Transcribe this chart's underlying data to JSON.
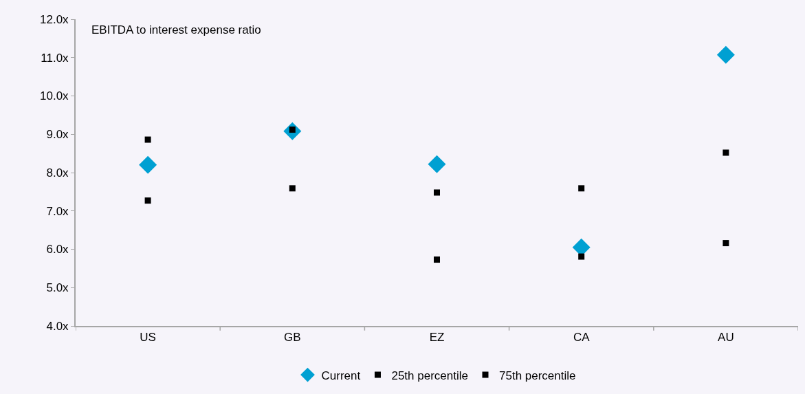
{
  "chart_data": {
    "type": "scatter",
    "title": "EBITDA to interest expense ratio",
    "categories": [
      "US",
      "GB",
      "EZ",
      "CA",
      "AU"
    ],
    "series": [
      {
        "name": "Current",
        "color": "#00a0d2",
        "marker": "diamond",
        "values": [
          8.2,
          9.08,
          8.22,
          6.05,
          11.07
        ]
      },
      {
        "name": "25th percentile",
        "color": "#000000",
        "marker": "square",
        "values": [
          7.27,
          7.59,
          5.73,
          5.81,
          6.16
        ]
      },
      {
        "name": "75th percentile",
        "color": "#000000",
        "marker": "square",
        "values": [
          8.86,
          9.12,
          7.48,
          7.59,
          8.52
        ]
      }
    ],
    "ylim": [
      4,
      12
    ],
    "yticks": [
      {
        "value": 4,
        "label": "4.0x"
      },
      {
        "value": 5,
        "label": "5.0x"
      },
      {
        "value": 6,
        "label": "6.0x"
      },
      {
        "value": 7,
        "label": "7.0x"
      },
      {
        "value": 8,
        "label": "8.0x"
      },
      {
        "value": 9,
        "label": "9.0x"
      },
      {
        "value": 10,
        "label": "10.0x"
      },
      {
        "value": 11,
        "label": "11.0x"
      },
      {
        "value": 12,
        "label": "12.0x"
      }
    ],
    "grid": false,
    "legend": "bottom"
  }
}
